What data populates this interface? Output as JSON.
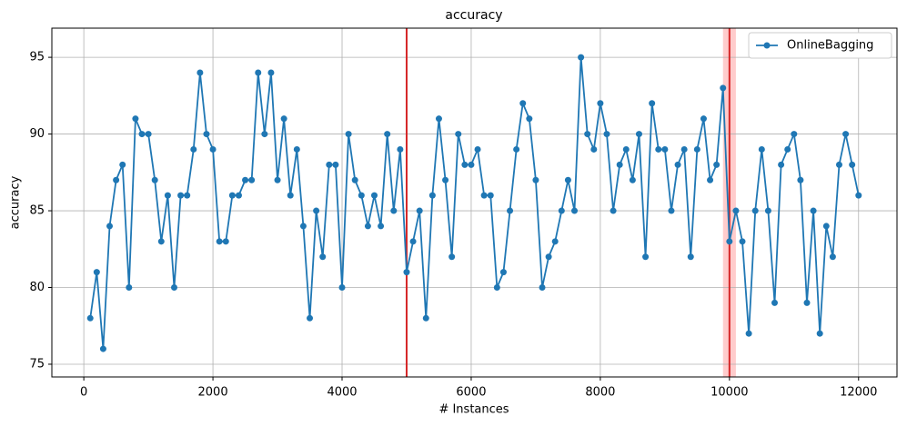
{
  "chart_data": {
    "type": "line",
    "title": "accuracy",
    "x_label": "# Instances",
    "y_label": "accuracy",
    "x": [
      100,
      200,
      300,
      400,
      500,
      600,
      700,
      800,
      900,
      1000,
      1100,
      1200,
      1300,
      1400,
      1500,
      1600,
      1700,
      1800,
      1900,
      2000,
      2100,
      2200,
      2300,
      2400,
      2500,
      2600,
      2700,
      2800,
      2900,
      3000,
      3100,
      3200,
      3300,
      3400,
      3500,
      3600,
      3700,
      3800,
      3900,
      4000,
      4100,
      4200,
      4300,
      4400,
      4500,
      4600,
      4700,
      4800,
      4900,
      5000,
      5100,
      5200,
      5300,
      5400,
      5500,
      5600,
      5700,
      5800,
      5900,
      6000,
      6100,
      6200,
      6300,
      6400,
      6500,
      6600,
      6700,
      6800,
      6900,
      7000,
      7100,
      7200,
      7300,
      7400,
      7500,
      7600,
      7700,
      7800,
      7900,
      8000,
      8100,
      8200,
      8300,
      8400,
      8500,
      8600,
      8700,
      8800,
      8900,
      9000,
      9100,
      9200,
      9300,
      9400,
      9500,
      9600,
      9700,
      9800,
      9900,
      10000,
      10100,
      10200,
      10300,
      10400,
      10500,
      10600,
      10700,
      10800,
      10900,
      11000,
      11100,
      11200,
      11300,
      11400,
      11500,
      11600,
      11700,
      11800,
      11900,
      12000
    ],
    "series": [
      {
        "name": "OnlineBagging",
        "color": "#1f77b4",
        "values": [
          78,
          81,
          76,
          84,
          87,
          88,
          80,
          91,
          90,
          90,
          87,
          83,
          86,
          80,
          86,
          86,
          89,
          94,
          90,
          89,
          83,
          83,
          86,
          86,
          87,
          87,
          94,
          90,
          94,
          87,
          91,
          86,
          89,
          84,
          78,
          85,
          82,
          88,
          88,
          80,
          90,
          87,
          86,
          84,
          86,
          84,
          90,
          85,
          89,
          81,
          83,
          85,
          78,
          86,
          91,
          87,
          82,
          90,
          88,
          88,
          89,
          86,
          86,
          80,
          81,
          85,
          89,
          92,
          91,
          87,
          80,
          82,
          83,
          85,
          87,
          85,
          95,
          90,
          89,
          92,
          90,
          85,
          88,
          89,
          87,
          90,
          82,
          92,
          89,
          89,
          85,
          88,
          89,
          82,
          89,
          91,
          87,
          88,
          93,
          83,
          85,
          83,
          77,
          85,
          89,
          85,
          79,
          88,
          89,
          90,
          87,
          79,
          85,
          77,
          84,
          82,
          88,
          90,
          88,
          86
        ]
      }
    ],
    "vlines": [
      5000,
      10000
    ],
    "vline_color": "#d62728",
    "vspans": [
      [
        9900,
        10100
      ]
    ],
    "vspan_color": "#ff9999",
    "xlim": [
      -495,
      12595
    ],
    "ylim": [
      74.17,
      96.9
    ],
    "xticks": [
      0,
      2000,
      4000,
      6000,
      8000,
      10000,
      12000
    ],
    "yticks": [
      75,
      80,
      85,
      90,
      95
    ],
    "grid": true,
    "legend": "upper right"
  }
}
